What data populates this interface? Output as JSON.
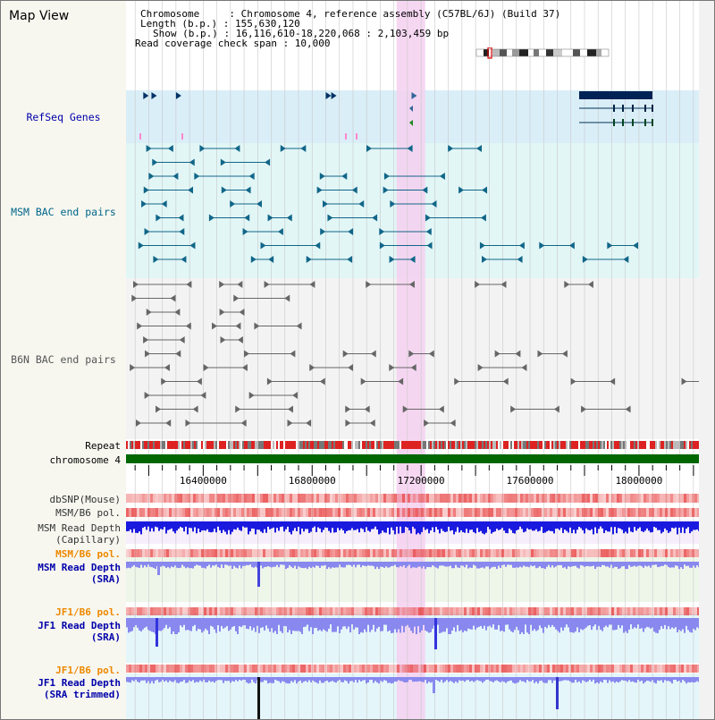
{
  "view": {
    "title": "Map View",
    "info_lines": [
      "Chromosome     : Chromosome 4, reference assembly (C57BL/6J) (Build 37)",
      "Length (b.p.) : 155,630,120",
      "Show (b.p.) : 16,116,610-18,220,068 : 2,103,459 bp",
      "Read coverage check span : 10,000"
    ]
  },
  "tracks": {
    "refseq": {
      "label": "RefSeq Genes",
      "color": "#0000aa"
    },
    "msm_bac": {
      "label": "MSM BAC end pairs",
      "color": "#006688"
    },
    "b6n_bac": {
      "label": "B6N BAC end pairs",
      "color": "#555555"
    },
    "repeat": {
      "label": "Repeat"
    },
    "chrom": {
      "label": "chromosome 4"
    },
    "dbsnp": {
      "label": "dbSNP(Mouse)"
    },
    "msm_b6_pol_1": {
      "label": "MSM/B6 pol."
    },
    "msm_read_cap": {
      "label1": "MSM Read Depth",
      "label2": "(Capillary)"
    },
    "msm_b6_pol_2": {
      "label": "MSM/B6 pol.",
      "color": "#ee8800"
    },
    "msm_read_sra": {
      "label1": "MSM Read Depth",
      "label2": "(SRA)",
      "color": "#0000aa"
    },
    "jf1_b6_pol_1": {
      "label": "JF1/B6 pol.",
      "color": "#ee8800"
    },
    "jf1_read_sra": {
      "label1": "JF1 Read Depth",
      "label2": "(SRA)",
      "color": "#0000aa"
    },
    "jf1_b6_pol_2": {
      "label": "JF1/B6 pol.",
      "color": "#ee8800"
    },
    "jf1_read_trim": {
      "label1": "JF1 Read Depth",
      "label2": "(SRA trimmed)",
      "color": "#0000aa"
    }
  },
  "axis": {
    "start": 16116610,
    "end": 18220068,
    "ticks": [
      "16400000",
      "16800000",
      "17200000",
      "17600000",
      "18000000"
    ],
    "tick_values": [
      16400000,
      16800000,
      17200000,
      17600000,
      18000000
    ]
  },
  "highlight": {
    "start": 17110000,
    "end": 17215000,
    "color": "#f5d0f0"
  },
  "colors": {
    "refseq_bg": "#daeef8",
    "msm_bg": "#e2f6f6",
    "b6n_bg": "#f3f3f3",
    "msm_sra_bg": "#eef6ea",
    "jf1_bg": "#e4f6fa",
    "depth_blue": "#1a1adf",
    "depth_light": "#8888ee",
    "snp_red": "#e84444",
    "chrom_green": "#006600"
  }
}
